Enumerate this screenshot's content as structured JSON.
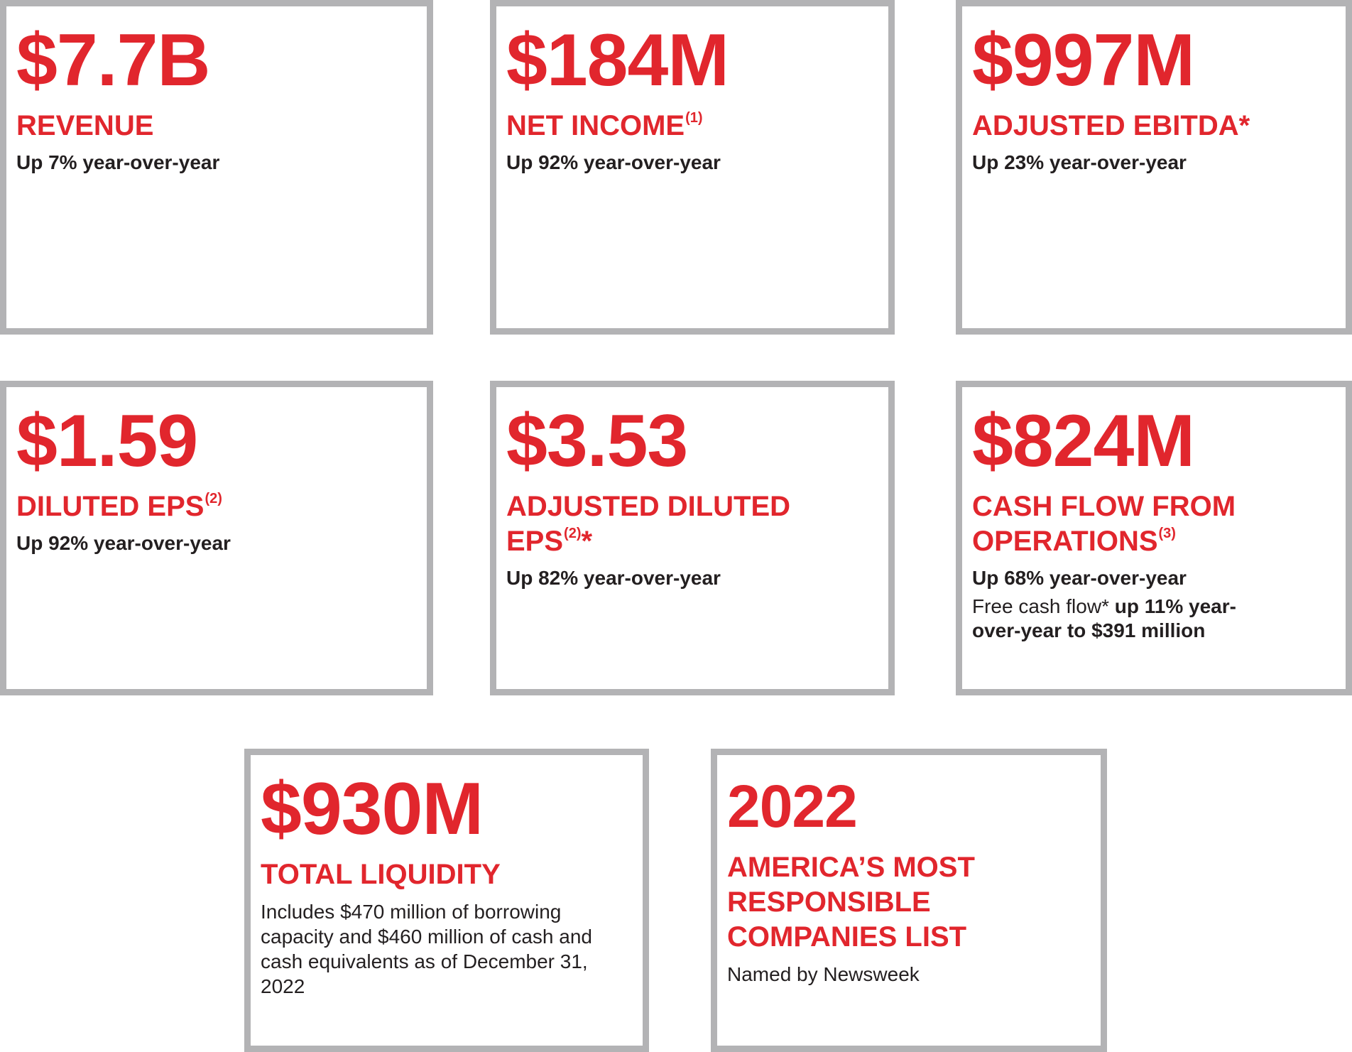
{
  "cards": [
    {
      "value": "$7.7B",
      "label": "REVENUE",
      "sup": "",
      "suffix": "",
      "note": "Up 7% year-over-year"
    },
    {
      "value": "$184M",
      "label": "NET INCOME",
      "sup": "(1)",
      "suffix": "",
      "note": "Up 92% year-over-year"
    },
    {
      "value": "$997M",
      "label": "ADJUSTED EBITDA*",
      "sup": "",
      "suffix": "",
      "note": "Up 23% year-over-year"
    },
    {
      "value": "$1.59",
      "label": "DILUTED EPS",
      "sup": "(2)",
      "suffix": "",
      "note": "Up 92% year-over-year"
    },
    {
      "value": "$3.53",
      "label": "ADJUSTED DILUTED EPS",
      "sup": "(2)",
      "suffix": "*",
      "note": "Up 82% year-over-year"
    },
    {
      "value": "$824M",
      "label": "CASH FLOW FROM OPERATIONS",
      "sup": "(3)",
      "suffix": "",
      "note": "Up 68% year-over-year",
      "extra_plain": "Free cash flow* ",
      "extra_bold": "up 11% year-over-year to $391 million"
    },
    {
      "value": "$930M",
      "label": "TOTAL LIQUIDITY",
      "sup": "",
      "suffix": "",
      "desc": "Includes $470 million of borrowing capacity and $460 million of cash and cash equivalents as of December 31, 2022"
    },
    {
      "value": "2022",
      "label": "AMERICA’S MOST RESPONSIBLE COMPANIES LIST",
      "sup": "",
      "suffix": "",
      "desc": "Named by Newsweek"
    }
  ]
}
